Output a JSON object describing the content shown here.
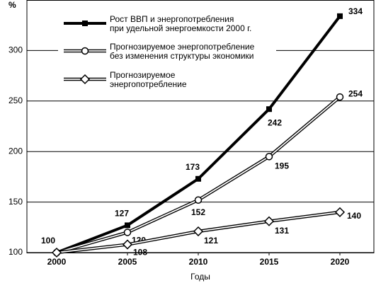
{
  "chart_data": {
    "type": "line",
    "ylabel": "%",
    "xlabel": "Годы",
    "x": [
      2000,
      2005,
      2010,
      2015,
      2020
    ],
    "xlim": [
      1997.9,
      2022.4
    ],
    "xticks": [
      2000,
      2005,
      2010,
      2015,
      2020
    ],
    "ylim": [
      100,
      350
    ],
    "yticks": [
      100,
      150,
      200,
      250,
      300
    ],
    "grid": true,
    "series": [
      {
        "name": "Рост ВВП и энергопотребления\nпри удельной энергоемкости 2000 г.",
        "color": "#000000",
        "marker": "square",
        "style": "thick",
        "values": [
          100,
          127,
          173,
          242,
          334
        ]
      },
      {
        "name": "Прогнозируемое энергопотребление\nбез изменения структуры экономики",
        "color": "#000000",
        "marker": "circle",
        "style": "double",
        "values": [
          100,
          120,
          152,
          195,
          254
        ]
      },
      {
        "name": "Прогнозируемое\nэнергопотребление",
        "color": "#000000",
        "marker": "diamond",
        "style": "double",
        "values": [
          100,
          108,
          121,
          131,
          140
        ]
      }
    ]
  }
}
